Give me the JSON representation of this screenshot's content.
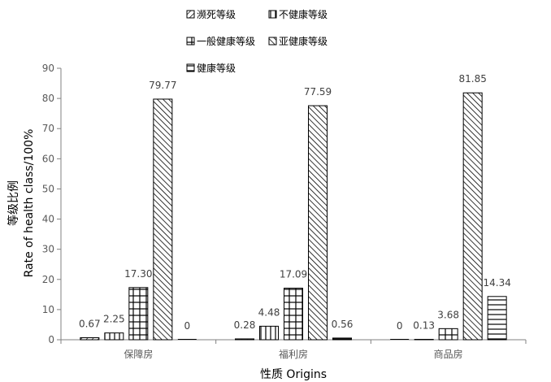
{
  "chart_data": {
    "type": "bar",
    "title": "",
    "xlabel": "性质 Origins",
    "ylabel_cn": "等级比例",
    "ylabel_en": "Rate of health class/100%",
    "ylim": [
      0,
      90
    ],
    "yticks": [
      0,
      10,
      20,
      30,
      40,
      50,
      60,
      70,
      80,
      90
    ],
    "categories": [
      "保障房",
      "福利房",
      "商品房"
    ],
    "series": [
      {
        "name": "濒死等级",
        "pattern": "diag-right",
        "values": [
          0.67,
          0.28,
          0
        ],
        "labels": [
          "0.67",
          "0.28",
          "0"
        ]
      },
      {
        "name": "不健康等级",
        "pattern": "vertical",
        "values": [
          2.25,
          4.48,
          0.13
        ],
        "labels": [
          "2.25",
          "4.48",
          "0.13"
        ]
      },
      {
        "name": "一般健康等级",
        "pattern": "grid",
        "values": [
          17.3,
          17.09,
          3.68
        ],
        "labels": [
          "17.30",
          "17.09",
          "3.68"
        ]
      },
      {
        "name": "亚健康等级",
        "pattern": "diag-left",
        "values": [
          79.77,
          77.59,
          81.85
        ],
        "labels": [
          "79.77",
          "77.59",
          "81.85"
        ]
      },
      {
        "name": "健康等级",
        "pattern": "horizontal",
        "values": [
          0,
          0.56,
          14.34
        ],
        "labels": [
          "0",
          "0.56",
          "14.34"
        ]
      }
    ],
    "legend": "top-center",
    "grid": false
  }
}
